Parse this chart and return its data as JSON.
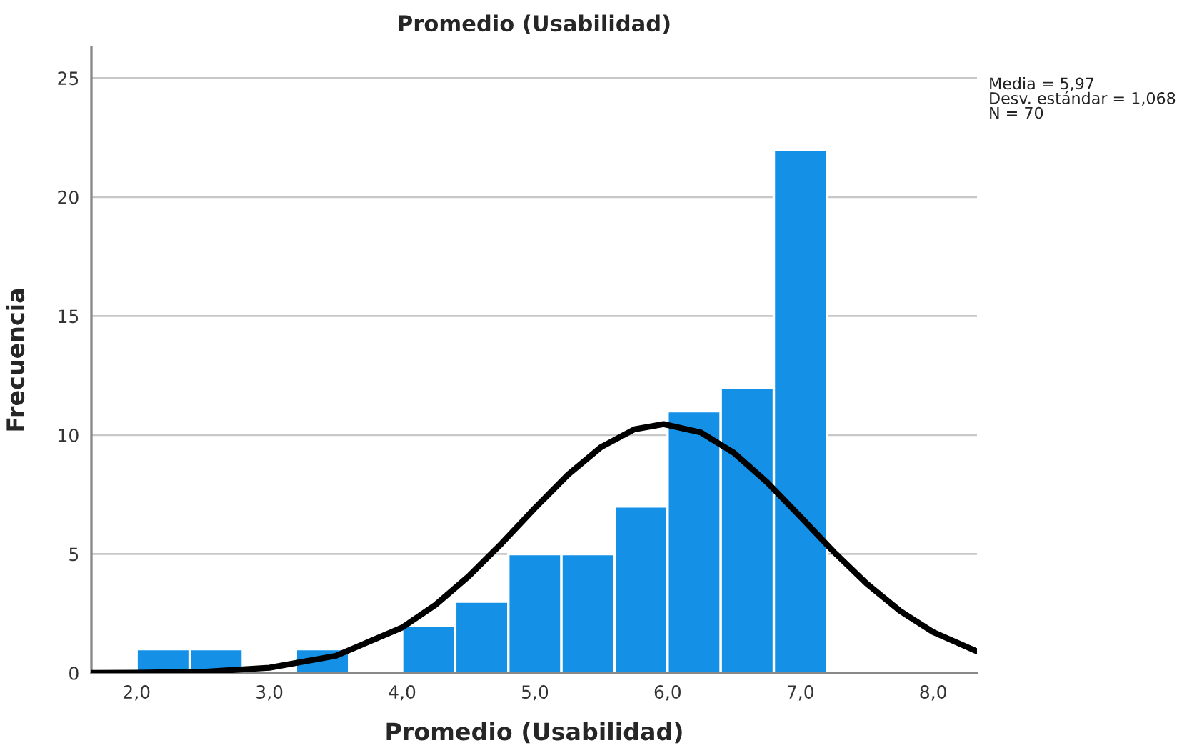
{
  "chart_data": {
    "type": "histogram",
    "title": "Promedio (Usabilidad)",
    "xlabel": "Promedio (Usabilidad)",
    "ylabel": "Frecuencia",
    "bins": [
      2.0,
      2.4,
      2.8,
      3.2,
      3.6,
      4.0,
      4.4,
      4.8,
      5.2,
      5.6,
      6.0,
      6.4,
      6.8,
      7.2
    ],
    "values": [
      1,
      1,
      0,
      1,
      0,
      2,
      3,
      5,
      5,
      7,
      11,
      12,
      22
    ],
    "color": "#1491e6",
    "series": [
      {
        "type": "line",
        "color": "#000000",
        "x": [
          1.66,
          2.0,
          2.5,
          3.0,
          3.5,
          4.0,
          4.25,
          4.5,
          4.75,
          5.0,
          5.25,
          5.5,
          5.75,
          5.97,
          6.25,
          6.5,
          6.75,
          7.0,
          7.25,
          7.5,
          7.75,
          8.0,
          8.33
        ],
        "values": [
          0.0,
          0.01,
          0.05,
          0.22,
          0.72,
          1.91,
          2.86,
          4.06,
          5.45,
          6.93,
          8.34,
          9.5,
          10.24,
          10.46,
          10.11,
          9.25,
          8.01,
          6.57,
          5.1,
          3.75,
          2.61,
          1.72,
          0.91
        ]
      }
    ],
    "annotations": [
      "Media = 5,97\nDesv. estándar = 1,068\nN = 70"
    ],
    "xlim": [
      1.66,
      8.33
    ],
    "ylim": [
      0,
      26.3
    ],
    "xticks": [
      {
        "value": 2,
        "label": "2,0"
      },
      {
        "value": 3,
        "label": "3,0"
      },
      {
        "value": 4,
        "label": "4,0"
      },
      {
        "value": 5,
        "label": "5,0"
      },
      {
        "value": 6,
        "label": "6,0"
      },
      {
        "value": 7,
        "label": "7,0"
      },
      {
        "value": 8,
        "label": "8,0"
      }
    ],
    "yticks": [
      0,
      5,
      10,
      15,
      20,
      25
    ],
    "grid": "y"
  }
}
